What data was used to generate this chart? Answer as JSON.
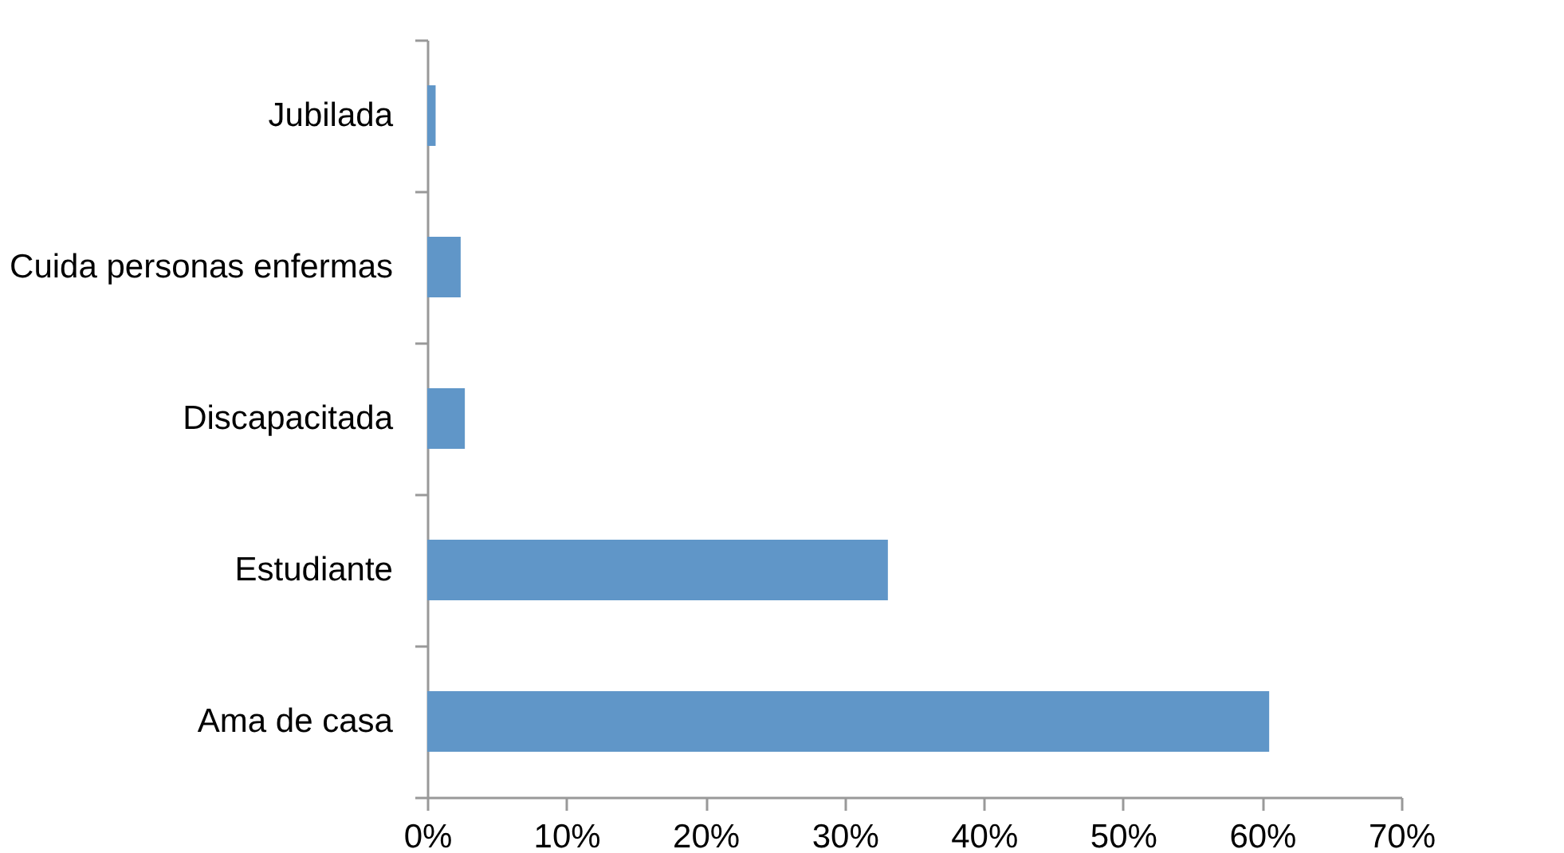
{
  "chart_data": {
    "type": "bar",
    "orientation": "horizontal",
    "categories": [
      "Jubilada",
      "Cuida personas enfermas",
      "Discapacitada",
      "Estudiante",
      "Ama de casa"
    ],
    "values": [
      0.6,
      2.4,
      2.7,
      33.1,
      60.5
    ],
    "color": "#6096c8",
    "xlim": [
      0,
      70
    ],
    "xticks": [
      {
        "value": 0,
        "label": "0%"
      },
      {
        "value": 10,
        "label": "10%"
      },
      {
        "value": 20,
        "label": "20%"
      },
      {
        "value": 30,
        "label": "30%"
      },
      {
        "value": 40,
        "label": "40%"
      },
      {
        "value": 50,
        "label": "50%"
      },
      {
        "value": 60,
        "label": "60%"
      },
      {
        "value": 70,
        "label": "70%"
      }
    ],
    "grid": false
  }
}
